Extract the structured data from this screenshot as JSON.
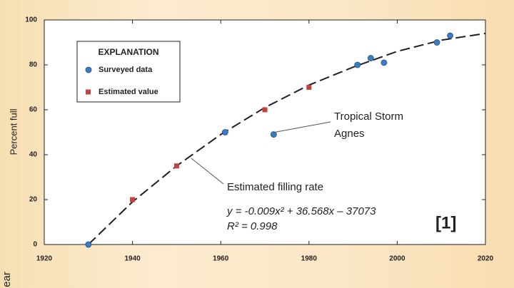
{
  "chart_data": {
    "type": "scatter",
    "ylabel": "Percent full",
    "xlabel": "ear",
    "xlim": [
      1920,
      2020
    ],
    "ylim": [
      0,
      100
    ],
    "xticks": [
      1920,
      1940,
      1960,
      1980,
      2000,
      2020
    ],
    "yticks": [
      0,
      20,
      40,
      60,
      80,
      100
    ],
    "legend_title": "EXPLANATION",
    "series": [
      {
        "name": "Surveyed data",
        "color": "#3d7cc0",
        "marker": "circle",
        "x": [
          1930,
          1961,
          1972,
          1991,
          1994,
          1997,
          2009,
          2012
        ],
        "values": [
          0,
          50,
          49,
          80,
          83,
          81,
          90,
          93
        ]
      },
      {
        "name": "Estimated value",
        "color": "#c0443c",
        "marker": "square",
        "x": [
          1940,
          1950,
          1970,
          1980
        ],
        "values": [
          20,
          35,
          60,
          70
        ]
      }
    ],
    "fit": {
      "label": "Estimated filling rate",
      "equation": "y = -0.009x² + 36.568x – 37073",
      "r2": "R² = 0.998",
      "x": [
        1930,
        1940,
        1950,
        1960,
        1970,
        1980,
        1990,
        2000,
        2010,
        2020
      ],
      "values": [
        0,
        19,
        35,
        49,
        61,
        71,
        79,
        86,
        91,
        94
      ]
    },
    "annotations": [
      "Tropical Storm",
      "Agnes",
      "[1]"
    ]
  }
}
